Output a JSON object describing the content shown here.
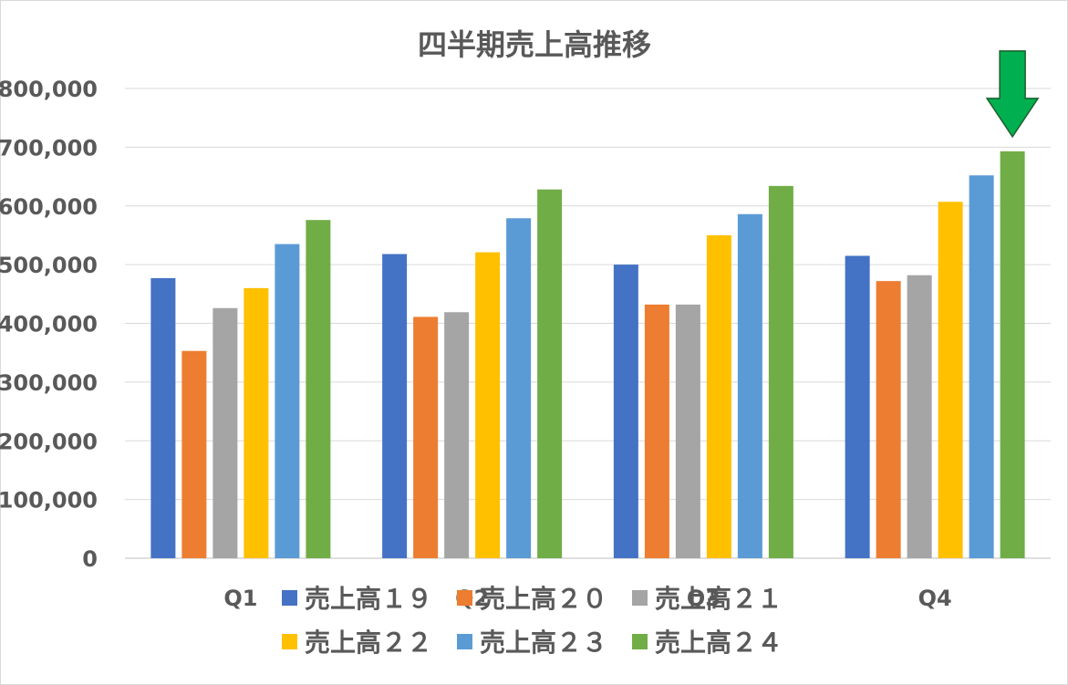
{
  "chart_data": {
    "type": "bar",
    "title": "四半期売上高推移",
    "xlabel": "",
    "ylabel": "",
    "categories": [
      "Q1",
      "Q2",
      "Q3",
      "Q4"
    ],
    "ylim": [
      0,
      800000
    ],
    "yticks": [
      0,
      100000,
      200000,
      300000,
      400000,
      500000,
      600000,
      700000,
      800000
    ],
    "ytick_labels": [
      "0",
      "100,000",
      "200,000",
      "300,000",
      "400,000",
      "500,000",
      "600,000",
      "700,000",
      "800,000"
    ],
    "grid": true,
    "legend_position": "bottom",
    "series": [
      {
        "name": "売上高１９",
        "color": "#4472c4",
        "values": [
          477000,
          518000,
          500000,
          515000
        ]
      },
      {
        "name": "売上高２０",
        "color": "#ed7d31",
        "values": [
          353000,
          411000,
          432000,
          472000
        ]
      },
      {
        "name": "売上高２１",
        "color": "#a5a5a5",
        "values": [
          426000,
          419000,
          432000,
          482000
        ]
      },
      {
        "name": "売上高２２",
        "color": "#ffc000",
        "values": [
          460000,
          521000,
          550000,
          607000
        ]
      },
      {
        "name": "売上高２３",
        "color": "#5b9bd5",
        "values": [
          535000,
          579000,
          586000,
          652000
        ]
      },
      {
        "name": "売上高２４",
        "color": "#70ad47",
        "values": [
          576000,
          628000,
          634000,
          693000
        ]
      }
    ],
    "annotations": [
      {
        "type": "arrow",
        "direction": "down",
        "color": "#00b050",
        "target_series": "売上高２４",
        "target_category": "Q4"
      }
    ]
  }
}
